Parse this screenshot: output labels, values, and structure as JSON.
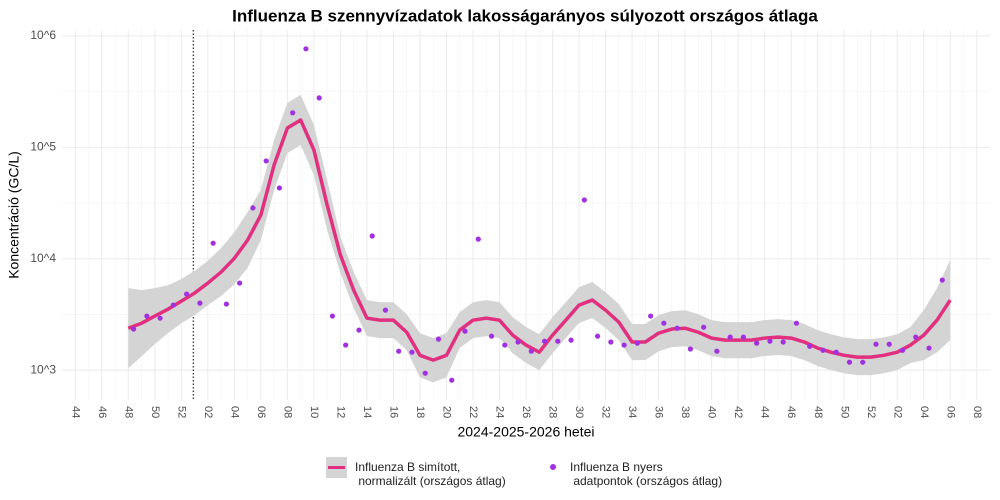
{
  "chart_data": {
    "type": "line",
    "title": "Influenza B szennyvízadatok lakosságarányos súlyozott országos átlaga",
    "x_label": "2024-2025-2026 hetei",
    "y_label": "Koncentráció (GC/L)",
    "log_y": true,
    "grid": true,
    "legend": "bottom",
    "xlim": [
      -1,
      69
    ],
    "xticks": [
      {
        "value": 0,
        "label": "44"
      },
      {
        "value": 2,
        "label": "46"
      },
      {
        "value": 4,
        "label": "48"
      },
      {
        "value": 6,
        "label": "50"
      },
      {
        "value": 8,
        "label": "52"
      },
      {
        "value": 10,
        "label": "02"
      },
      {
        "value": 12,
        "label": "04"
      },
      {
        "value": 14,
        "label": "06"
      },
      {
        "value": 16,
        "label": "08"
      },
      {
        "value": 18,
        "label": "10"
      },
      {
        "value": 20,
        "label": "12"
      },
      {
        "value": 22,
        "label": "14"
      },
      {
        "value": 24,
        "label": "16"
      },
      {
        "value": 26,
        "label": "18"
      },
      {
        "value": 28,
        "label": "20"
      },
      {
        "value": 30,
        "label": "22"
      },
      {
        "value": 32,
        "label": "24"
      },
      {
        "value": 34,
        "label": "26"
      },
      {
        "value": 36,
        "label": "28"
      },
      {
        "value": 38,
        "label": "30"
      },
      {
        "value": 40,
        "label": "32"
      },
      {
        "value": 42,
        "label": "34"
      },
      {
        "value": 44,
        "label": "36"
      },
      {
        "value": 46,
        "label": "38"
      },
      {
        "value": 48,
        "label": "40"
      },
      {
        "value": 50,
        "label": "42"
      },
      {
        "value": 52,
        "label": "44"
      },
      {
        "value": 54,
        "label": "46"
      },
      {
        "value": 56,
        "label": "48"
      },
      {
        "value": 58,
        "label": "50"
      },
      {
        "value": 60,
        "label": "52"
      },
      {
        "value": 62,
        "label": "02"
      },
      {
        "value": 64,
        "label": "04"
      },
      {
        "value": 66,
        "label": "06"
      },
      {
        "value": 68,
        "label": "08"
      }
    ],
    "ylim": [
      540,
      1130000
    ],
    "yticks": [
      {
        "value": 1000,
        "label": "10^3"
      },
      {
        "value": 10000,
        "label": "10^4"
      },
      {
        "value": 100000,
        "label": "10^5"
      },
      {
        "value": 1000000,
        "label": "10^6"
      }
    ],
    "vline": 8.9,
    "series": [
      {
        "name": "Influenza B simított,\n normalizált (országos átlag)",
        "color": "#e0307f",
        "band_color": "#d4d4d4",
        "x": [
          4,
          5,
          6,
          7,
          8,
          9,
          10,
          11,
          12,
          13,
          14,
          15,
          16,
          17,
          18,
          19,
          20,
          21,
          22,
          23,
          24,
          25,
          26,
          27,
          28,
          29,
          30,
          31,
          32,
          33,
          34,
          35,
          36,
          37,
          38,
          39,
          40,
          41,
          42,
          43,
          44,
          45,
          46,
          47,
          48,
          49,
          50,
          51,
          52,
          53,
          54,
          55,
          56,
          57,
          58,
          59,
          60,
          61,
          62,
          63,
          64,
          65,
          66
        ],
        "values": [
          2380,
          2640,
          3060,
          3530,
          4170,
          4920,
          6050,
          7600,
          10100,
          14700,
          24700,
          69500,
          149000,
          176000,
          94800,
          30400,
          10800,
          5230,
          2930,
          2810,
          2810,
          2190,
          1360,
          1230,
          1360,
          2290,
          2810,
          2930,
          2810,
          2060,
          1680,
          1450,
          2060,
          2810,
          3840,
          4260,
          3460,
          2700,
          1790,
          1790,
          2150,
          2340,
          2380,
          2190,
          1940,
          1860,
          1860,
          1860,
          1940,
          1980,
          1940,
          1790,
          1580,
          1450,
          1360,
          1310,
          1310,
          1360,
          1450,
          1680,
          2060,
          2810,
          4260
        ],
        "upper": [
          5450,
          5230,
          5450,
          5790,
          6590,
          7770,
          9560,
          12500,
          17300,
          26200,
          41500,
          117000,
          250000,
          296000,
          159000,
          51100,
          15700,
          7580,
          4250,
          4070,
          4070,
          3180,
          2150,
          1940,
          2150,
          3320,
          4070,
          4250,
          4070,
          2990,
          2440,
          2100,
          2990,
          4070,
          5570,
          6180,
          5020,
          3920,
          2600,
          2600,
          3120,
          3390,
          3450,
          3180,
          2810,
          2700,
          2700,
          2700,
          2810,
          2870,
          2810,
          2600,
          2290,
          2100,
          1970,
          1900,
          1900,
          1970,
          2100,
          2440,
          3460,
          5450,
          9760
        ],
        "lower": [
          1040,
          1330,
          1720,
          2150,
          2640,
          3110,
          3830,
          4630,
          5910,
          8260,
          14700,
          41400,
          88700,
          105000,
          56400,
          18100,
          7450,
          3610,
          2020,
          1940,
          1940,
          1510,
          861,
          778,
          861,
          1580,
          1940,
          2020,
          1940,
          1420,
          1160,
          1000,
          1420,
          1940,
          2650,
          2940,
          2390,
          1860,
          1230,
          1230,
          1480,
          1610,
          1640,
          1510,
          1340,
          1280,
          1280,
          1280,
          1340,
          1370,
          1340,
          1230,
          1090,
          1000,
          938,
          903,
          903,
          938,
          1000,
          1160,
          1230,
          1450,
          1860
        ]
      },
      {
        "name": "Influenza B nyers\n adatpontok (országos átlag)",
        "color": "#a030e0",
        "x": [
          4.4,
          5.4,
          6.4,
          7.4,
          8.4,
          9.4,
          10.4,
          11.4,
          12.4,
          13.4,
          14.4,
          15.4,
          16.4,
          17.4,
          18.4,
          19.4,
          20.4,
          21.4,
          22.4,
          23.4,
          24.4,
          25.4,
          26.4,
          27.4,
          28.4,
          29.4,
          30.4,
          31.4,
          32.4,
          33.4,
          34.4,
          35.4,
          36.4,
          37.4,
          38.4,
          39.4,
          40.4,
          41.4,
          42.4,
          43.4,
          44.4,
          45.4,
          46.4,
          47.4,
          48.4,
          49.4,
          50.4,
          51.4,
          52.4,
          53.4,
          54.4,
          55.4,
          56.4,
          57.4,
          58.4,
          59.4,
          60.4,
          61.4,
          62.4,
          63.4,
          64.4,
          65.4
        ],
        "values": [
          2340,
          3060,
          2930,
          3840,
          4820,
          4000,
          13800,
          3920,
          6050,
          28600,
          75500,
          43200,
          204000,
          766000,
          278000,
          3060,
          1680,
          2290,
          16000,
          3460,
          1480,
          1450,
          940,
          1900,
          813,
          2240,
          15000,
          2020,
          1680,
          1790,
          1480,
          1820,
          1820,
          1860,
          33700,
          2020,
          1790,
          1680,
          1750,
          3060,
          2640,
          2380,
          1550,
          2430,
          1480,
          1980,
          1980,
          1750,
          1820,
          1790,
          2640,
          1640,
          1510,
          1450,
          1180,
          1180,
          1710,
          1710,
          1510,
          1980,
          1580,
          6440
        ]
      }
    ]
  }
}
